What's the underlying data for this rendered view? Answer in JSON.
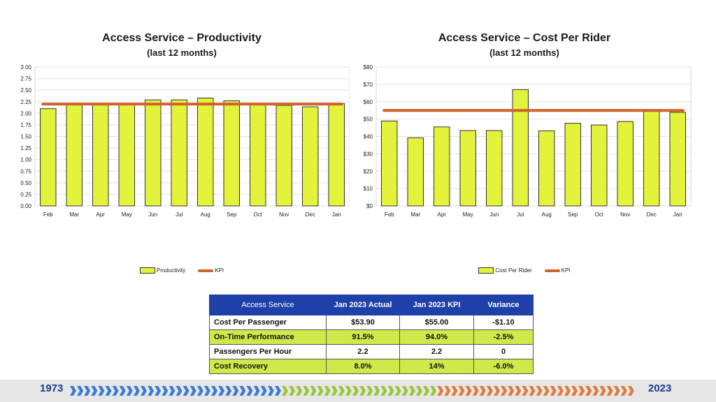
{
  "chart_data": [
    {
      "type": "bar",
      "title": "Access Service – Productivity",
      "subtitle": "(last 12 months)",
      "categories": [
        "Feb",
        "Mar",
        "Apr",
        "May",
        "Jun",
        "Jul",
        "Aug",
        "Sep",
        "Oct",
        "Nov",
        "Dec",
        "Jan"
      ],
      "series": [
        {
          "name": "Productivity",
          "values": [
            2.1,
            2.22,
            2.2,
            2.2,
            2.29,
            2.29,
            2.33,
            2.27,
            2.2,
            2.17,
            2.14,
            2.21
          ]
        }
      ],
      "kpi": {
        "name": "KPI",
        "value": 2.2
      },
      "yticks": [
        "0.00",
        "0.25",
        "0.50",
        "0.75",
        "1.00",
        "1.25",
        "1.50",
        "1.75",
        "2.00",
        "2.25",
        "2.50",
        "2.75",
        "3.00"
      ],
      "ylim": [
        0,
        3
      ],
      "legend": [
        "Productivity",
        "KPI"
      ],
      "colors": {
        "bar": "#e3f23a",
        "kpi": "#d0632c"
      }
    },
    {
      "type": "bar",
      "title": "Access Service – Cost Per Rider",
      "subtitle": "(last 12 months)",
      "categories": [
        "Feb",
        "Mar",
        "Apr",
        "May",
        "Jun",
        "Jul",
        "Aug",
        "Sep",
        "Oct",
        "Nov",
        "Dec",
        "Jan"
      ],
      "series": [
        {
          "name": "Cost Per Rider",
          "values": [
            48.9,
            39.2,
            45.5,
            43.4,
            43.4,
            67.0,
            43.2,
            47.6,
            46.6,
            48.6,
            55.0,
            53.9
          ]
        }
      ],
      "kpi": {
        "name": "KPI",
        "value": 55
      },
      "yticks": [
        "$0",
        "$10",
        "$20",
        "$30",
        "$40",
        "$50",
        "$60",
        "$70",
        "$80"
      ],
      "ylim": [
        0,
        80
      ],
      "legend": [
        "Cost Per Rider",
        "KPI"
      ],
      "colors": {
        "bar": "#e3f23a",
        "kpi": "#d0632c"
      }
    }
  ],
  "table": {
    "headers": [
      "Access Service",
      "Jan 2023 Actual",
      "Jan 2023 KPI",
      "Variance"
    ],
    "rows": [
      [
        "Cost Per Passenger",
        "$53.90",
        "$55.00",
        "-$1.10"
      ],
      [
        "On-Time Performance",
        "91.5%",
        "94.0%",
        "-2.5%"
      ],
      [
        "Passengers Per Hour",
        "2.2",
        "2.2",
        "0"
      ],
      [
        "Cost Recovery",
        "8.0%",
        "14%",
        "-6.0%"
      ]
    ]
  },
  "footer": {
    "start_year": "1973",
    "end_year": "2023"
  },
  "colors": {
    "header_blue": "#1e40a8",
    "row_green": "#cfe84a",
    "accent_orange": "#d0632c"
  }
}
